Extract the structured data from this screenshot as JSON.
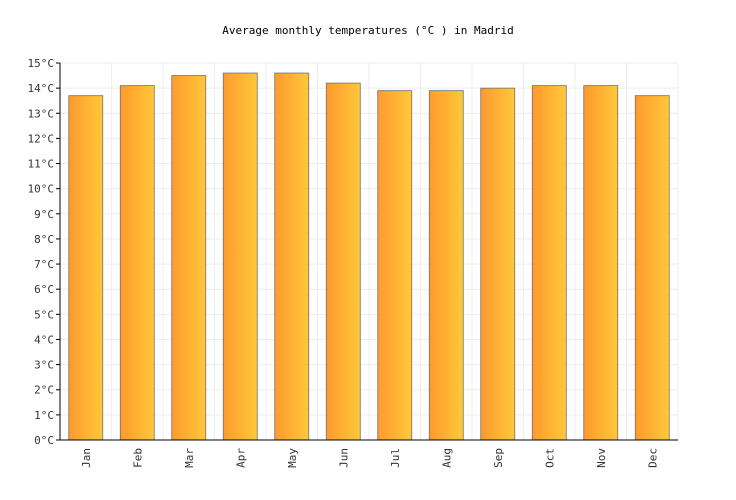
{
  "chart_data": {
    "type": "bar",
    "title": "Average monthly temperatures (°C ) in Madrid",
    "xlabel": "",
    "ylabel": "",
    "categories": [
      "Jan",
      "Feb",
      "Mar",
      "Apr",
      "May",
      "Jun",
      "Jul",
      "Aug",
      "Sep",
      "Oct",
      "Nov",
      "Dec"
    ],
    "series": [
      {
        "values": [
          13.7,
          14.1,
          14.5,
          14.6,
          14.6,
          14.2,
          13.9,
          13.9,
          14.0,
          14.1,
          14.1,
          13.7
        ]
      }
    ],
    "ylim": [
      0,
      15
    ],
    "yticks": [
      "0°C",
      "1°C",
      "2°C",
      "3°C",
      "4°C",
      "5°C",
      "6°C",
      "7°C",
      "8°C",
      "9°C",
      "10°C",
      "11°C",
      "12°C",
      "13°C",
      "14°C",
      "15°C"
    ],
    "grid": true,
    "legend": "none",
    "colors": {
      "bar_left": "#ff9a2e",
      "bar_right": "#ffc83a",
      "bar_stroke": "#707070",
      "grid": "#eeeeee",
      "axis": "#000000"
    }
  }
}
